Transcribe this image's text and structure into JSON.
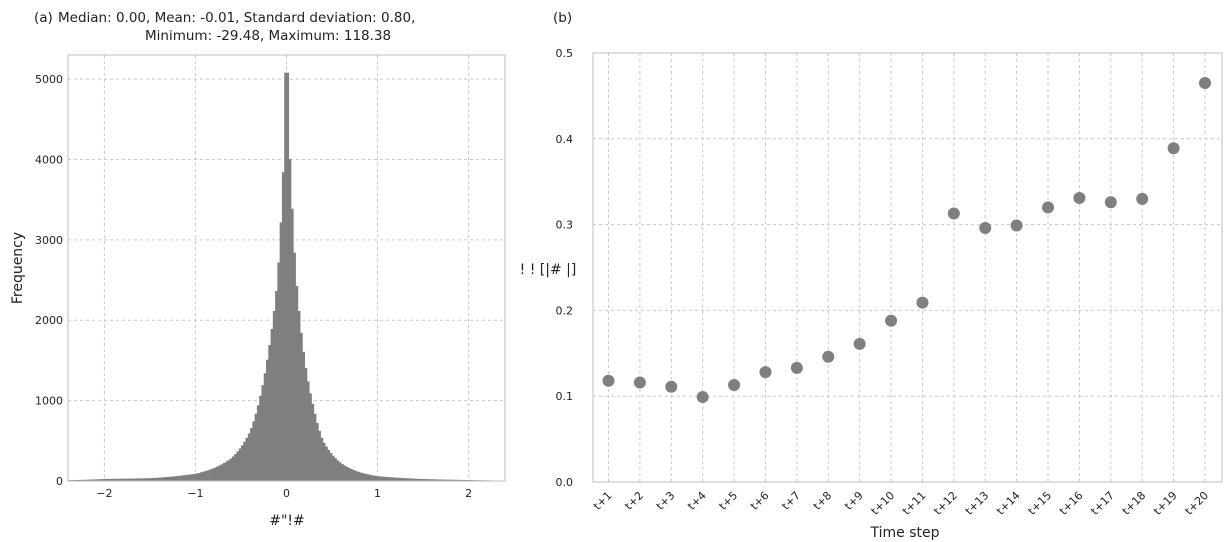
{
  "chart_data": [
    {
      "type": "bar",
      "panel_label": "(a)",
      "title_line1": "Median: 0.00, Mean: -0.01, Standard deviation: 0.80,",
      "title_line2": "Minimum: -29.48, Maximum: 118.38",
      "xlabel": "#\"!#",
      "ylabel": "Frequency",
      "xlim": [
        -2.4,
        2.4
      ],
      "ylim": [
        0,
        5300
      ],
      "xticks": [
        -2,
        -1,
        0,
        1,
        2
      ],
      "xtick_labels": [
        "−2",
        "−1",
        "0",
        "1",
        "2"
      ],
      "yticks": [
        0,
        1000,
        2000,
        3000,
        4000,
        5000
      ],
      "ytick_labels": [
        "0",
        "1000",
        "2000",
        "3000",
        "4000",
        "5000"
      ],
      "grid": true,
      "bin_width": 0.025,
      "color": "#7f7f7f",
      "peak_center": 0.0,
      "peak_value": 5080,
      "bins_summary": [
        {
          "x": -2.4,
          "y": 10
        },
        {
          "x": -2.0,
          "y": 25
        },
        {
          "x": -1.5,
          "y": 35
        },
        {
          "x": -1.0,
          "y": 90
        },
        {
          "x": -0.8,
          "y": 160
        },
        {
          "x": -0.6,
          "y": 290
        },
        {
          "x": -0.4,
          "y": 620
        },
        {
          "x": -0.3,
          "y": 1000
        },
        {
          "x": -0.2,
          "y": 1600
        },
        {
          "x": -0.1,
          "y": 2500
        },
        {
          "x": -0.05,
          "y": 3500
        },
        {
          "x": 0.0,
          "y": 5080
        },
        {
          "x": 0.05,
          "y": 3700
        },
        {
          "x": 0.1,
          "y": 2600
        },
        {
          "x": 0.2,
          "y": 1500
        },
        {
          "x": 0.3,
          "y": 900
        },
        {
          "x": 0.4,
          "y": 500
        },
        {
          "x": 0.6,
          "y": 220
        },
        {
          "x": 0.8,
          "y": 110
        },
        {
          "x": 1.0,
          "y": 60
        },
        {
          "x": 1.5,
          "y": 25
        },
        {
          "x": 2.0,
          "y": 12
        },
        {
          "x": 2.4,
          "y": 5
        }
      ]
    },
    {
      "type": "scatter",
      "panel_label": "(b)",
      "xlabel": "Time step",
      "ylabel": "! ! [|# |]",
      "ylim": [
        0.0,
        0.5
      ],
      "yticks": [
        0.0,
        0.1,
        0.2,
        0.3,
        0.4,
        0.5
      ],
      "ytick_labels": [
        "0.0",
        "0.1",
        "0.2",
        "0.3",
        "0.4",
        "0.5"
      ],
      "grid": true,
      "color": "#7f7f7f",
      "categories": [
        "t+1",
        "t+2",
        "t+3",
        "t+4",
        "t+5",
        "t+6",
        "t+7",
        "t+8",
        "t+9",
        "t+10",
        "t+11",
        "t+12",
        "t+13",
        "t+14",
        "t+15",
        "t+16",
        "t+17",
        "t+18",
        "t+19",
        "t+20"
      ],
      "values": [
        0.118,
        0.116,
        0.111,
        0.099,
        0.113,
        0.128,
        0.133,
        0.146,
        0.161,
        0.188,
        0.209,
        0.313,
        0.296,
        0.299,
        0.32,
        0.331,
        0.326,
        0.33,
        0.389,
        0.465
      ]
    }
  ]
}
